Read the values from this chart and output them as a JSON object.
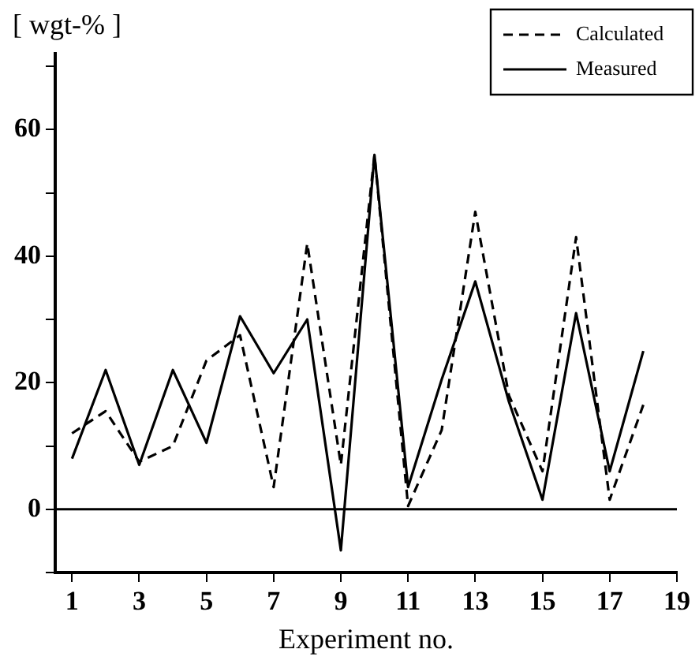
{
  "chart_data": {
    "type": "line",
    "xlabel": "Experiment no.",
    "ylabel": "[ wgt-% ]",
    "x": [
      1,
      2,
      3,
      4,
      5,
      6,
      7,
      8,
      9,
      10,
      11,
      12,
      13,
      14,
      15,
      16,
      17,
      18
    ],
    "series": [
      {
        "name": "Calculated",
        "color": "#000000",
        "line_style": "dashed",
        "values": [
          12,
          15.5,
          7.5,
          10,
          23.5,
          27.5,
          3.5,
          42,
          7,
          56,
          0.5,
          12.5,
          47,
          18,
          6,
          43,
          1.5,
          16.5
        ]
      },
      {
        "name": "Measured",
        "color": "#000000",
        "line_style": "solid",
        "values": [
          8,
          22,
          7,
          22,
          10.5,
          30.5,
          21.5,
          30,
          -6.5,
          56,
          3.5,
          20.5,
          36,
          17,
          1.5,
          31,
          6,
          25
        ]
      }
    ],
    "xlim": [
      0.5,
      19
    ],
    "xticks": [
      1,
      3,
      5,
      7,
      9,
      11,
      13,
      15,
      17,
      19
    ],
    "ylim": [
      -10,
      72
    ],
    "yticks": [
      {
        "value": -10,
        "label": null
      },
      0,
      {
        "value": 10,
        "label": null
      },
      20,
      {
        "value": 30,
        "label": null
      },
      40,
      {
        "value": 50,
        "label": null
      },
      60,
      {
        "value": 70,
        "label": null
      }
    ],
    "ref_lines": [
      {
        "axis": "y",
        "value": 0,
        "color": "#000000"
      }
    ],
    "grid": false,
    "legend": "top right",
    "marker": "none"
  }
}
